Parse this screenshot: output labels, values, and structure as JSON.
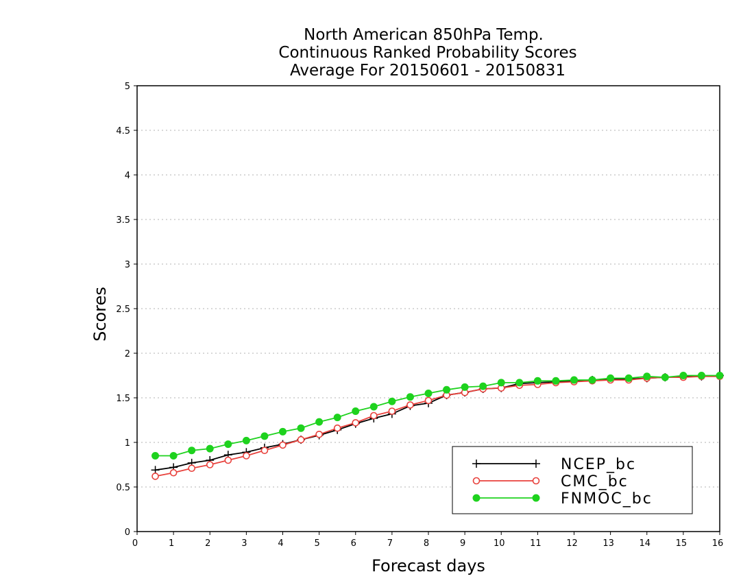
{
  "chart_data": {
    "type": "line",
    "title": [
      "North American 850hPa Temp.",
      "Continuous Ranked Probability Scores",
      "Average For 20150601 - 20150831"
    ],
    "xlabel": "Forecast days",
    "ylabel": "Scores",
    "xlim": [
      0,
      16
    ],
    "ylim": [
      0,
      5
    ],
    "x_ticks": [
      "0",
      "1",
      "2",
      "3",
      "4",
      "5",
      "6",
      "7",
      "8",
      "9",
      "10",
      "11",
      "12",
      "13",
      "14",
      "15",
      "16"
    ],
    "y_ticks": [
      "0",
      "0.5",
      "1",
      "1.5",
      "2",
      "2.5",
      "3",
      "3.5",
      "4",
      "4.5",
      "5"
    ],
    "grid": "horizontal dotted",
    "legend_position": "bottom-right",
    "x": [
      0.5,
      1,
      1.5,
      2,
      2.5,
      3,
      3.5,
      4,
      4.5,
      5,
      5.5,
      6,
      6.5,
      7,
      7.5,
      8,
      8.5,
      9,
      9.5,
      10,
      10.5,
      11,
      11.5,
      12,
      12.5,
      13,
      13.5,
      14,
      14.5,
      15,
      15.5,
      16
    ],
    "series": [
      {
        "name": "NCEP_bc",
        "color": "#000000",
        "marker": "plus",
        "values": [
          0.69,
          0.72,
          0.77,
          0.8,
          0.86,
          0.89,
          0.94,
          0.98,
          1.03,
          1.08,
          1.14,
          1.21,
          1.27,
          1.32,
          1.41,
          1.44,
          1.53,
          1.56,
          1.6,
          1.61,
          1.66,
          1.67,
          1.68,
          1.69,
          1.7,
          1.71,
          1.71,
          1.72,
          1.73,
          1.74,
          1.74,
          1.75
        ]
      },
      {
        "name": "CMC_bc",
        "color": "#e8413c",
        "marker": "open-circle",
        "values": [
          0.62,
          0.66,
          0.71,
          0.75,
          0.8,
          0.85,
          0.91,
          0.97,
          1.03,
          1.09,
          1.16,
          1.22,
          1.3,
          1.35,
          1.42,
          1.47,
          1.53,
          1.56,
          1.6,
          1.61,
          1.64,
          1.65,
          1.67,
          1.68,
          1.69,
          1.7,
          1.7,
          1.72,
          1.73,
          1.73,
          1.74,
          1.74
        ]
      },
      {
        "name": "FNMOC_bc",
        "color": "#1ed21e",
        "marker": "filled-circle",
        "values": [
          0.85,
          0.85,
          0.91,
          0.93,
          0.98,
          1.02,
          1.07,
          1.12,
          1.16,
          1.23,
          1.28,
          1.35,
          1.4,
          1.46,
          1.51,
          1.55,
          1.59,
          1.62,
          1.63,
          1.67,
          1.67,
          1.69,
          1.69,
          1.7,
          1.7,
          1.72,
          1.72,
          1.74,
          1.73,
          1.75,
          1.75,
          1.75
        ]
      }
    ]
  }
}
